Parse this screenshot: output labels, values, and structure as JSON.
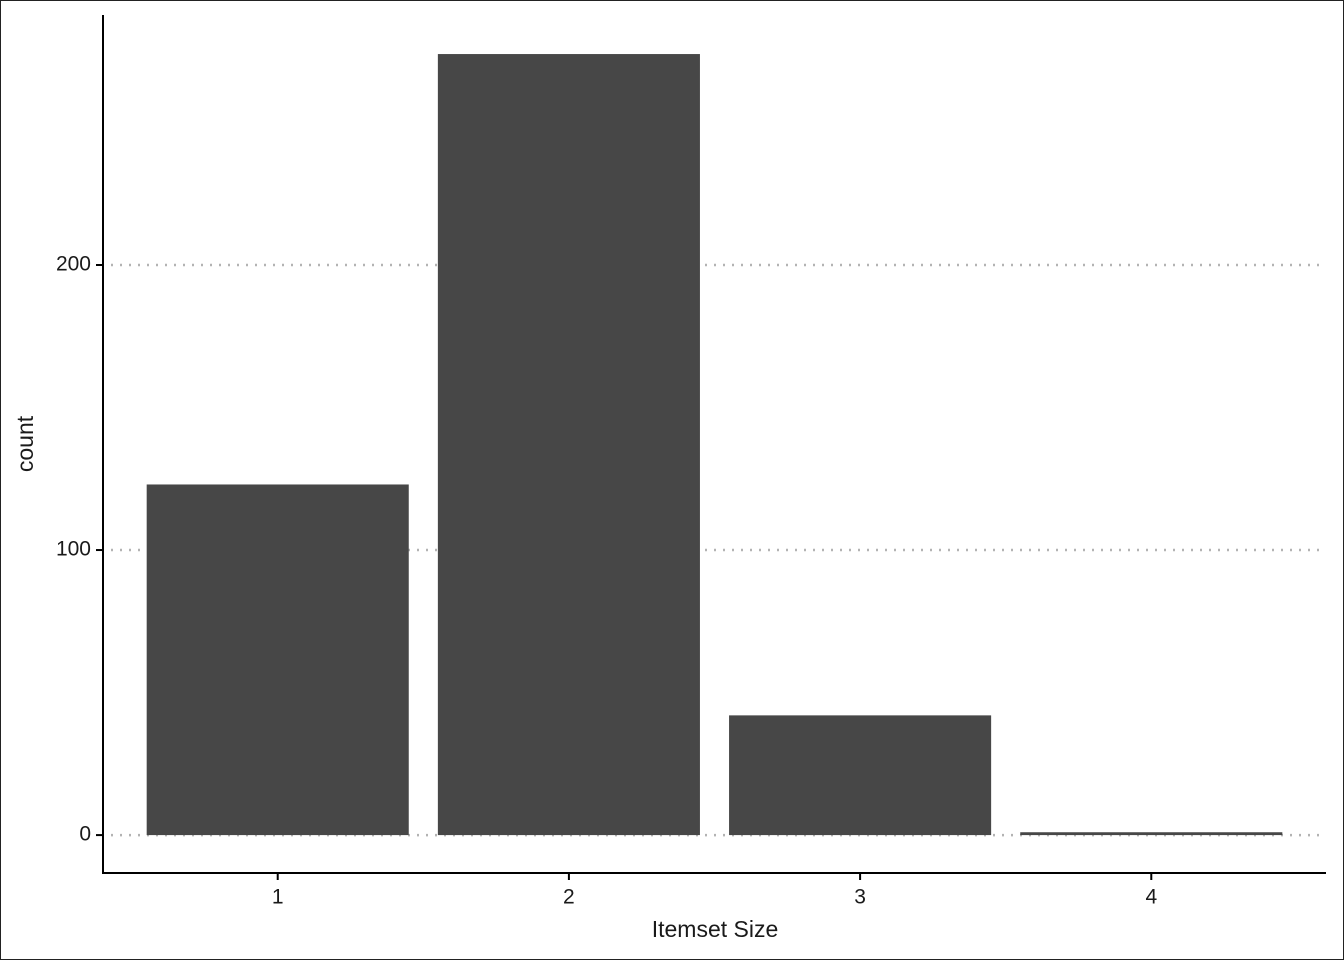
{
  "chart_data": {
    "type": "bar",
    "x_label": "Itemset Size",
    "y_label": "count",
    "categories": [
      "1",
      "2",
      "3",
      "4"
    ],
    "values": [
      123,
      274,
      42,
      1
    ],
    "color": "#474747",
    "ylim": [
      -13.3,
      287.7
    ],
    "yticks": [
      0,
      100,
      200
    ],
    "grid": true
  }
}
